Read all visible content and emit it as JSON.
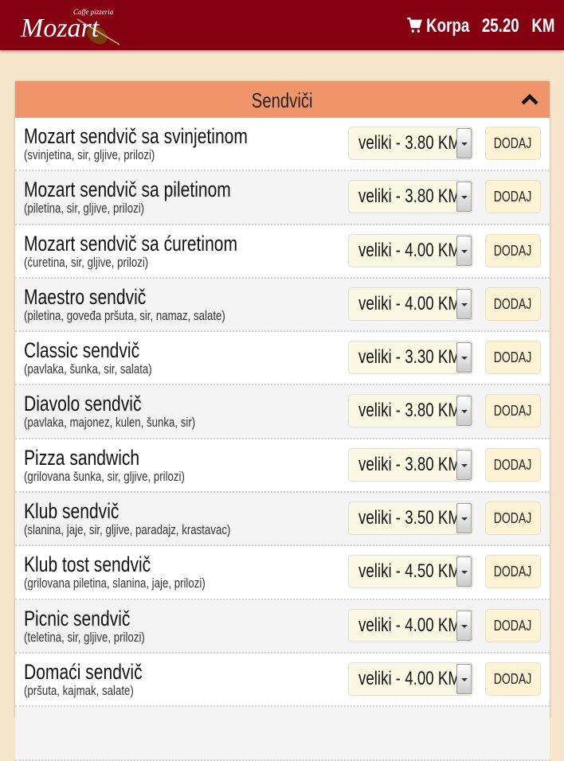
{
  "header": {
    "logo_text": "Caffe pizzeria Mozart",
    "cart_label": "Korpa",
    "cart_total": "25.20",
    "currency": "KM",
    "cart_icon": "shopping-cart-icon"
  },
  "section": {
    "title": "Sendviči",
    "toggle_icon": "chevron-up-icon"
  },
  "add_label": "DODAJ",
  "items": [
    {
      "name": "Mozart sendvič sa svinjetinom",
      "desc": "(svinjetina, sir, gljive, prilozi)",
      "option": "veliki - 3.80 KM"
    },
    {
      "name": "Mozart sendvič sa piletinom",
      "desc": "(piletina, sir, gljive, prilozi)",
      "option": "veliki - 3.80 KM"
    },
    {
      "name": "Mozart sendvič sa ćuretinom",
      "desc": "(ćuretina, sir, gljive, prilozi)",
      "option": "veliki - 4.00 KM"
    },
    {
      "name": "Maestro sendvič",
      "desc": "(piletina, goveđa pršuta, sir, namaz, salate)",
      "option": "veliki - 4.00 KM"
    },
    {
      "name": "Classic sendvič",
      "desc": "(pavlaka, šunka, sir, salata)",
      "option": "veliki - 3.30 KM"
    },
    {
      "name": "Diavolo sendvič",
      "desc": "(pavlaka, majonez, kulen, šunka, sir)",
      "option": "veliki - 3.80 KM"
    },
    {
      "name": "Pizza sandwich",
      "desc": "(grilovana šunka, sir, gljive, prilozi)",
      "option": "veliki - 3.80 KM"
    },
    {
      "name": "Klub sendvič",
      "desc": "(slanina, jaje, sir, gljive, paradajz, krastavac)",
      "option": "veliki - 3.50 KM"
    },
    {
      "name": "Klub tost sendvič",
      "desc": "(grilovana piletina, slanina, jaje, prilozi)",
      "option": "veliki - 4.50 KM"
    },
    {
      "name": "Picnic sendvič",
      "desc": "(teletina, sir, gljive, prilozi)",
      "option": "veliki - 4.00 KM"
    },
    {
      "name": "Domaći sendvič",
      "desc": "(pršuta, kajmak, salate)",
      "option": "veliki - 4.00 KM"
    }
  ]
}
